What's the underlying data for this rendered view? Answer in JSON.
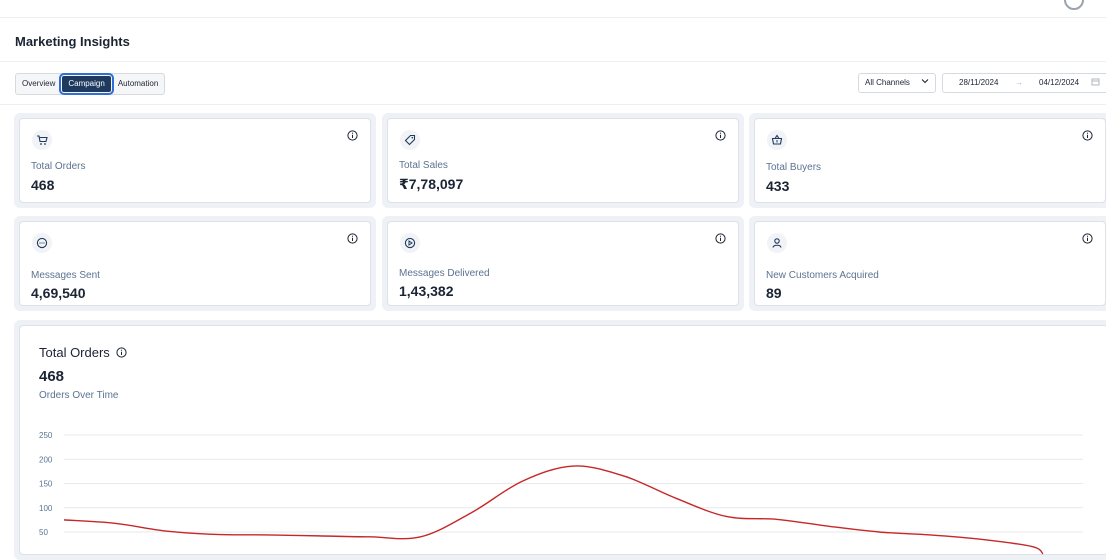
{
  "page": {
    "title": "Marketing Insights"
  },
  "tabs": [
    {
      "label": "Overview",
      "active": false
    },
    {
      "label": "Campaign",
      "active": true
    },
    {
      "label": "Automation",
      "active": false
    }
  ],
  "filters": {
    "channel": "All Channels",
    "date_from": "28/11/2024",
    "date_to": "04/12/2024"
  },
  "metrics": [
    {
      "label": "Total Orders",
      "value": "468",
      "icon": "cart-icon"
    },
    {
      "label": "Total Sales",
      "value": "₹7,78,097",
      "icon": "tag-icon"
    },
    {
      "label": "Total Buyers",
      "value": "433",
      "icon": "basket-icon"
    },
    {
      "label": "Messages Sent",
      "value": "4,69,540",
      "icon": "chat-icon"
    },
    {
      "label": "Messages Delivered",
      "value": "1,43,382",
      "icon": "play-circle-icon"
    },
    {
      "label": "New Customers Acquired",
      "value": "89",
      "icon": "user-icon"
    }
  ],
  "chart_panel": {
    "title": "Total Orders",
    "value": "468",
    "subtitle": "Orders Over Time"
  },
  "colors": {
    "accent": "#1e3a5f",
    "line": "#c62828",
    "label": "#5b7391"
  },
  "chart_data": {
    "type": "line",
    "title": "Orders Over Time",
    "ylim": [
      0,
      250
    ],
    "yticks": [
      50,
      100,
      150,
      200,
      250
    ],
    "grid": true,
    "series": [
      {
        "values": [
          75,
          68,
          52,
          45,
          44,
          42,
          40,
          40,
          90,
          155,
          186,
          165,
          120,
          82,
          76,
          62,
          50,
          44,
          35,
          20,
          5
        ]
      }
    ]
  }
}
